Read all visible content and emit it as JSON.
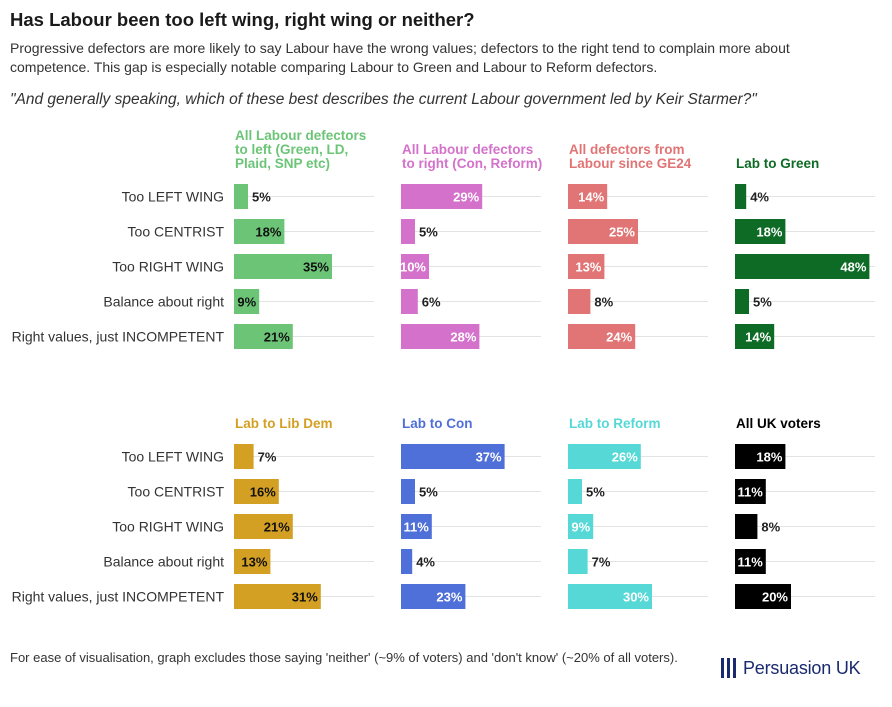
{
  "title": "Has Labour been too left wing, right wing or neither?",
  "subtitle": "Progressive defectors are more likely to say Labour have the wrong values; defectors to the right tend to complain more about competence. This gap is especially notable comparing Labour to Green and Labour to Reform defectors.",
  "question": "\"And generally speaking, which of these best describes the current Labour government led by Keir Starmer?\"",
  "footnote": "For ease of visualisation, graph excludes those saying 'neither' (~9% of voters) and 'don't know' (~20% of all voters).",
  "brand": "Persuasion UK",
  "chart_data": {
    "type": "bar",
    "orientation": "horizontal",
    "unit": "%",
    "xlim": [
      0,
      50
    ],
    "categories": [
      "Too LEFT WING",
      "Too CENTRIST",
      "Too RIGHT WING",
      "Balance about right",
      "Right values, just INCOMPETENT"
    ],
    "panels": [
      {
        "name": "All Labour defectors to left (Green, LD, Plaid, SNP etc)",
        "title_lines": [
          "All Labour defectors",
          "to left (Green, LD,",
          "Plaid, SNP etc)"
        ],
        "color": "#6cc577",
        "values": [
          5,
          18,
          35,
          9,
          21
        ]
      },
      {
        "name": "All Labour defectors to right (Con, Reform)",
        "title_lines": [
          "All Labour defectors",
          "to right (Con, Reform)"
        ],
        "color": "#d472cb",
        "values": [
          29,
          5,
          10,
          6,
          28
        ]
      },
      {
        "name": "All defectors from Labour since GE24",
        "title_lines": [
          "All defectors from",
          "Labour since GE24"
        ],
        "color": "#e17474",
        "values": [
          14,
          25,
          13,
          8,
          24
        ]
      },
      {
        "name": "Lab to Green",
        "title_lines": [
          "Lab to Green"
        ],
        "color": "#0d6b25",
        "values": [
          4,
          18,
          48,
          5,
          14
        ]
      },
      {
        "name": "Lab to Lib Dem",
        "title_lines": [
          "Lab to Lib Dem"
        ],
        "color": "#d4a024",
        "values": [
          7,
          16,
          21,
          13,
          31
        ]
      },
      {
        "name": "Lab to Con",
        "title_lines": [
          "Lab to Con"
        ],
        "color": "#4f6fd9",
        "values": [
          37,
          5,
          11,
          4,
          23
        ]
      },
      {
        "name": "Lab to Reform",
        "title_lines": [
          "Lab to Reform"
        ],
        "color": "#55d8d6",
        "values": [
          26,
          5,
          9,
          7,
          30
        ]
      },
      {
        "name": "All UK voters",
        "title_lines": [
          "All UK voters"
        ],
        "color": "#000000",
        "values": [
          18,
          11,
          8,
          11,
          20
        ]
      }
    ]
  }
}
